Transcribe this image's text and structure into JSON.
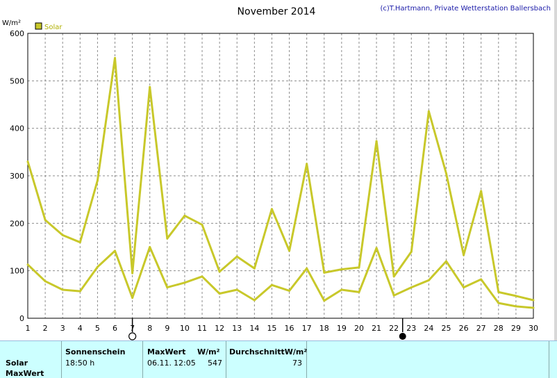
{
  "chart_data": {
    "type": "line",
    "title": "November 2014",
    "credit": "(c)T.Hartmann, Private Wetterstation Ballersbach",
    "ylabel": "W/m²",
    "ylim": [
      0,
      600
    ],
    "yticks": [
      0,
      100,
      200,
      300,
      400,
      500,
      600
    ],
    "x": [
      1,
      2,
      3,
      4,
      5,
      6,
      7,
      8,
      9,
      10,
      11,
      12,
      13,
      14,
      15,
      16,
      17,
      18,
      19,
      20,
      21,
      22,
      23,
      24,
      25,
      26,
      27,
      28,
      29,
      30
    ],
    "legend": "Solar",
    "series": [
      {
        "key": "max",
        "color": "#c8c82a",
        "values": [
          330,
          207,
          175,
          160,
          290,
          548,
          95,
          487,
          168,
          216,
          197,
          98,
          130,
          105,
          230,
          142,
          325,
          96,
          103,
          107,
          373,
          88,
          140,
          436,
          305,
          133,
          268,
          55,
          47,
          38
        ]
      },
      {
        "key": "avg",
        "color": "#c8c82a",
        "values": [
          113,
          78,
          60,
          57,
          108,
          142,
          43,
          150,
          65,
          75,
          88,
          52,
          60,
          38,
          70,
          58,
          105,
          37,
          60,
          55,
          148,
          48,
          65,
          80,
          120,
          65,
          82,
          32,
          25,
          22
        ]
      }
    ],
    "markers": [
      {
        "x": 7,
        "type": "new-moon"
      },
      {
        "x": 22.5,
        "type": "full-moon"
      }
    ]
  },
  "panel": {
    "row_label_1": "Solar",
    "row_label_2": "MaxWert",
    "sun_header": "Sonnenschein",
    "sun_value": "18:50 h",
    "max_header": "MaxWert",
    "max_unit": "W/m²",
    "max_date": "06.11.",
    "max_time": "12:05",
    "max_value": "547",
    "avg_header": "DurchschnittW/m²",
    "avg_value": "73"
  },
  "colors": {
    "line": "#c8c82a",
    "panel": "#ccffff",
    "legend_box": "#c8c82a"
  }
}
